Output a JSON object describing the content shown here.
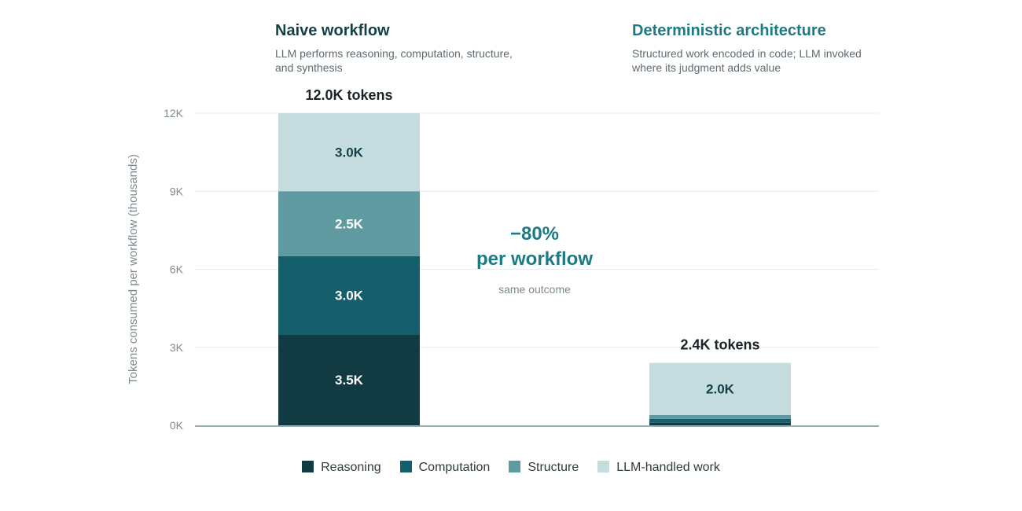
{
  "panels": {
    "left": {
      "title": "Naive workflow",
      "subtitle": "LLM performs reasoning, computation, structure, and synthesis"
    },
    "right": {
      "title": "Deterministic architecture",
      "subtitle": "Structured work encoded in code; LLM invoked where its judgment adds value"
    }
  },
  "annotation": {
    "headline_line1": "−80%",
    "headline_line2": "per workflow",
    "note": "same outcome"
  },
  "colors": {
    "reasoning": "#113a42",
    "computation": "#155e6b",
    "structure": "#5f9aa1",
    "llm": "#c6dddf",
    "accent": "#1d7a84"
  },
  "chart_data": {
    "type": "bar",
    "stacked": true,
    "categories": [
      "Naive workflow",
      "Deterministic architecture"
    ],
    "ylabel": "Tokens consumed per workflow (thousands)",
    "ylim": [
      0,
      12
    ],
    "yticks": [
      0,
      3,
      6,
      9,
      12
    ],
    "ytick_labels": [
      "0K",
      "3K",
      "6K",
      "9K",
      "12K"
    ],
    "grid": true,
    "legend_position": "bottom",
    "series": [
      {
        "name": "Reasoning",
        "color_key": "reasoning",
        "values": [
          3.5,
          0.1
        ],
        "labels": [
          "3.5K",
          ""
        ]
      },
      {
        "name": "Computation",
        "color_key": "computation",
        "values": [
          3.0,
          0.15
        ],
        "labels": [
          "3.0K",
          ""
        ]
      },
      {
        "name": "Structure",
        "color_key": "structure",
        "values": [
          2.5,
          0.15
        ],
        "labels": [
          "2.5K",
          ""
        ]
      },
      {
        "name": "LLM-handled work",
        "color_key": "llm",
        "values": [
          3.0,
          2.0
        ],
        "labels": [
          "3.0K",
          "2.0K"
        ]
      }
    ],
    "totals": [
      12.0,
      2.4
    ],
    "total_labels": [
      "12.0K tokens",
      "2.4K tokens"
    ]
  }
}
